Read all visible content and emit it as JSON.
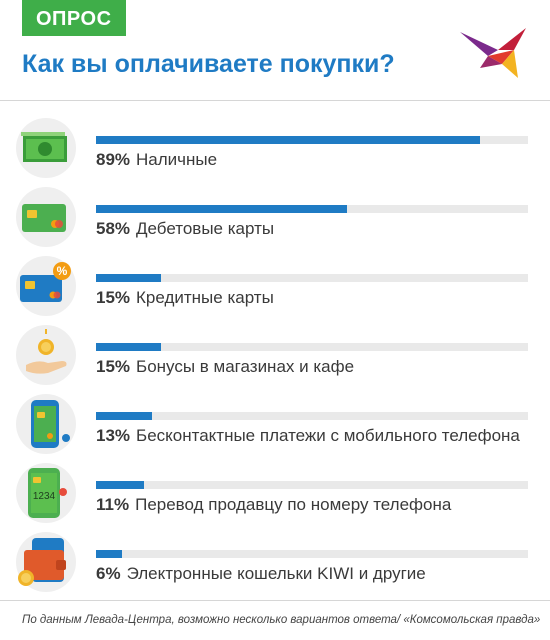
{
  "badge": "ОПРОС",
  "title": "Как вы оплачиваете покупки?",
  "footer": "По данным Левада-Центра, возможно несколько вариантов ответа/ «Комсомольская правда»",
  "colors": {
    "accent": "#1f7bc4",
    "badge": "#3fae49",
    "track": "#e9e9e9"
  },
  "chart_data": {
    "type": "bar",
    "orientation": "horizontal",
    "title": "Как вы оплачиваете покупки?",
    "categories": [
      "Наличные",
      "Дебетовые карты",
      "Кредитные карты",
      "Бонусы в магазинах и кафе",
      "Бесконтактные платежи с мобильного телефона",
      "Перевод продавцу по номеру телефона",
      "Электронные кошельки KIWI и другие"
    ],
    "values": [
      89,
      58,
      15,
      15,
      13,
      11,
      6
    ],
    "labels": [
      "89%",
      "58%",
      "15%",
      "15%",
      "13%",
      "11%",
      "6%"
    ],
    "icons": [
      "cash-icon",
      "debit-card-icon",
      "credit-card-percent-icon",
      "coin-hand-icon",
      "mobile-contactless-icon",
      "phone-transfer-icon",
      "wallet-icon"
    ],
    "icon_text": {
      "phone-transfer-icon": "1234"
    },
    "xlim": [
      0,
      100
    ],
    "grid": false,
    "legend": "none"
  }
}
